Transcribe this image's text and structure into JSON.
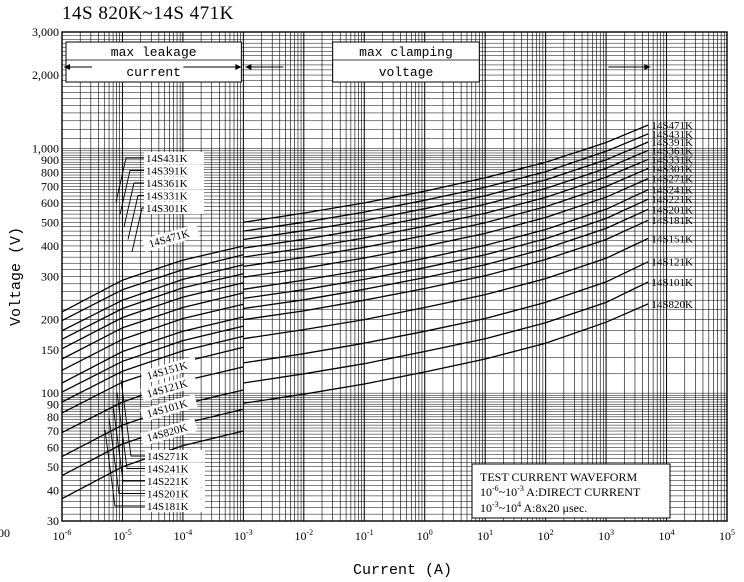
{
  "chart_data": {
    "type": "line",
    "title": "14S 820K~14S 471K",
    "xlabel": "Current (A)",
    "ylabel": "Voltage (V)",
    "x_scale": "log",
    "y_scale": "log",
    "xlim": [
      1e-06,
      100000
    ],
    "ylim": [
      30,
      3000
    ],
    "x_ticks": [
      "10-6",
      "10-5",
      "10-4",
      "10-3",
      "10-2",
      "10-1",
      "10^0",
      "10^1",
      "10^2",
      "10^3",
      "10^4",
      "10^5"
    ],
    "x_tick_labels": [
      {
        "base": "10",
        "exp": "-6"
      },
      {
        "base": "10",
        "exp": "-5"
      },
      {
        "base": "10",
        "exp": "-4"
      },
      {
        "base": "10",
        "exp": "-3"
      },
      {
        "base": "10",
        "exp": "-2"
      },
      {
        "base": "10",
        "exp": "-1"
      },
      {
        "base": "10",
        "exp": "0"
      },
      {
        "base": "10",
        "exp": "1"
      },
      {
        "base": "10",
        "exp": "2"
      },
      {
        "base": "10",
        "exp": "3"
      },
      {
        "base": "10",
        "exp": "4"
      },
      {
        "base": "10",
        "exp": "5"
      }
    ],
    "x_tick_values": [
      1e-06,
      1e-05,
      0.0001,
      0.001,
      0.01,
      0.1,
      1,
      10,
      100,
      1000,
      10000,
      100000
    ],
    "y_ticks": [
      {
        "label": "3,000",
        "value": 3000
      },
      {
        "label": "2,000",
        "value": 2000
      },
      {
        "label": "1,000",
        "value": 1000
      },
      {
        "label": "900",
        "value": 900
      },
      {
        "label": "800",
        "value": 800
      },
      {
        "label": "700",
        "value": 700
      },
      {
        "label": "600",
        "value": 600
      },
      {
        "label": "500",
        "value": 500
      },
      {
        "label": "400",
        "value": 400
      },
      {
        "label": "300",
        "value": 300
      },
      {
        "label": "200",
        "value": 200
      },
      {
        "label": "150",
        "value": 150
      },
      {
        "label": "100",
        "value": 100
      },
      {
        "label": "90",
        "value": 90
      },
      {
        "label": "80",
        "value": 80
      },
      {
        "label": "70",
        "value": 70
      },
      {
        "label": "60",
        "value": 60
      },
      {
        "label": "50",
        "value": 50
      },
      {
        "label": "40",
        "value": 40
      },
      {
        "label": "30",
        "value": 30
      }
    ],
    "left_edge_label": "00",
    "grid": true,
    "regions": [
      {
        "label_lines": [
          "max leakage",
          "current"
        ],
        "x_start": 1e-06,
        "x_end": 0.001
      },
      {
        "label_lines": [
          "max clamping",
          "voltage"
        ],
        "x_start": 0.001,
        "x_end": 5000
      }
    ],
    "leakage_series": [
      {
        "name": "14S471K",
        "x": [
          1e-06,
          1e-05,
          0.0001,
          0.001
        ],
        "y": [
          215,
          290,
          350,
          400
        ]
      },
      {
        "name": "14S431K",
        "x": [
          1e-06,
          1e-05,
          0.0001,
          0.001
        ],
        "y": [
          198,
          265,
          320,
          368
        ]
      },
      {
        "name": "14S391K",
        "x": [
          1e-06,
          1e-05,
          0.0001,
          0.001
        ],
        "y": [
          180,
          240,
          292,
          335
        ]
      },
      {
        "name": "14S361K",
        "x": [
          1e-06,
          1e-05,
          0.0001,
          0.001
        ],
        "y": [
          166,
          222,
          270,
          308
        ]
      },
      {
        "name": "14S331K",
        "x": [
          1e-06,
          1e-05,
          0.0001,
          0.001
        ],
        "y": [
          152,
          204,
          247,
          283
        ]
      },
      {
        "name": "14S301K",
        "x": [
          1e-06,
          1e-05,
          0.0001,
          0.001
        ],
        "y": [
          138,
          185,
          224,
          257
        ]
      },
      {
        "name": "14S271K",
        "x": [
          1e-06,
          1e-05,
          0.0001,
          0.001
        ],
        "y": [
          124,
          166,
          202,
          231
        ]
      },
      {
        "name": "14S241K",
        "x": [
          1e-06,
          1e-05,
          0.0001,
          0.001
        ],
        "y": [
          110,
          148,
          179,
          205
        ]
      },
      {
        "name": "14S221K",
        "x": [
          1e-06,
          1e-05,
          0.0001,
          0.001
        ],
        "y": [
          101,
          135,
          164,
          188
        ]
      },
      {
        "name": "14S201K",
        "x": [
          1e-06,
          1e-05,
          0.0001,
          0.001
        ],
        "y": [
          92,
          123,
          149,
          171
        ]
      },
      {
        "name": "14S181K",
        "x": [
          1e-06,
          1e-05,
          0.0001,
          0.001
        ],
        "y": [
          83,
          111,
          134,
          154
        ]
      },
      {
        "name": "14S151K",
        "x": [
          1e-06,
          1e-05,
          0.0001,
          0.001
        ],
        "y": [
          69,
          92,
          112,
          128
        ]
      },
      {
        "name": "14S121K",
        "x": [
          1e-06,
          1e-05,
          0.0001,
          0.001
        ],
        "y": [
          55,
          74,
          90,
          103
        ]
      },
      {
        "name": "14S101K",
        "x": [
          1e-06,
          1e-05,
          0.0001,
          0.001
        ],
        "y": [
          46,
          62,
          75,
          86
        ]
      },
      {
        "name": "14S820K",
        "x": [
          1e-06,
          1e-05,
          0.0001,
          0.001
        ],
        "y": [
          37,
          50,
          61,
          70
        ]
      }
    ],
    "clamping_series": [
      {
        "name": "14S471K",
        "x": [
          0.001,
          0.01,
          0.1,
          1,
          10,
          100,
          1000,
          5000
        ],
        "y": [
          500,
          545,
          600,
          670,
          760,
          880,
          1060,
          1250
        ]
      },
      {
        "name": "14S431K",
        "x": [
          0.001,
          0.01,
          0.1,
          1,
          10,
          100,
          1000,
          5000
        ],
        "y": [
          460,
          500,
          550,
          615,
          695,
          805,
          975,
          1150
        ]
      },
      {
        "name": "14S391K",
        "x": [
          0.001,
          0.01,
          0.1,
          1,
          10,
          100,
          1000,
          5000
        ],
        "y": [
          425,
          462,
          508,
          568,
          642,
          745,
          900,
          1065
        ]
      },
      {
        "name": "14S361K",
        "x": [
          0.001,
          0.01,
          0.1,
          1,
          10,
          100,
          1000,
          5000
        ],
        "y": [
          392,
          426,
          469,
          524,
          592,
          687,
          830,
          985
        ]
      },
      {
        "name": "14S331K",
        "x": [
          0.001,
          0.01,
          0.1,
          1,
          10,
          100,
          1000,
          5000
        ],
        "y": [
          360,
          392,
          431,
          482,
          544,
          632,
          764,
          905
        ]
      },
      {
        "name": "14S301K",
        "x": [
          0.001,
          0.01,
          0.1,
          1,
          10,
          100,
          1000,
          5000
        ],
        "y": [
          330,
          359,
          395,
          441,
          498,
          579,
          700,
          830
        ]
      },
      {
        "name": "14S271K",
        "x": [
          0.001,
          0.01,
          0.1,
          1,
          10,
          100,
          1000,
          5000
        ],
        "y": [
          298,
          324,
          357,
          399,
          450,
          523,
          633,
          755
        ]
      },
      {
        "name": "14S241K",
        "x": [
          0.001,
          0.01,
          0.1,
          1,
          10,
          100,
          1000,
          5000
        ],
        "y": [
          266,
          290,
          319,
          356,
          402,
          467,
          565,
          680
        ]
      },
      {
        "name": "14S221K",
        "x": [
          0.001,
          0.01,
          0.1,
          1,
          10,
          100,
          1000,
          5000
        ],
        "y": [
          244,
          265,
          292,
          326,
          368,
          428,
          518,
          622
        ]
      },
      {
        "name": "14S201K",
        "x": [
          0.001,
          0.01,
          0.1,
          1,
          10,
          100,
          1000,
          5000
        ],
        "y": [
          222,
          241,
          266,
          297,
          335,
          390,
          472,
          565
        ]
      },
      {
        "name": "14S181K",
        "x": [
          0.001,
          0.01,
          0.1,
          1,
          10,
          100,
          1000,
          5000
        ],
        "y": [
          200,
          217,
          240,
          268,
          302,
          352,
          425,
          510
        ]
      },
      {
        "name": "14S151K",
        "x": [
          0.001,
          0.01,
          0.1,
          1,
          10,
          100,
          1000,
          5000
        ],
        "y": [
          167,
          182,
          200,
          224,
          253,
          294,
          356,
          430
        ]
      },
      {
        "name": "14S121K",
        "x": [
          0.001,
          0.01,
          0.1,
          1,
          10,
          100,
          1000,
          5000
        ],
        "y": [
          133,
          145,
          160,
          179,
          202,
          235,
          285,
          345
        ]
      },
      {
        "name": "14S101K",
        "x": [
          0.001,
          0.01,
          0.1,
          1,
          10,
          100,
          1000,
          5000
        ],
        "y": [
          110,
          120,
          132,
          148,
          167,
          194,
          235,
          285
        ]
      },
      {
        "name": "14S820K",
        "x": [
          0.001,
          0.01,
          0.1,
          1,
          10,
          100,
          1000,
          5000
        ],
        "y": [
          91,
          99,
          109,
          122,
          138,
          160,
          195,
          232
        ]
      }
    ],
    "right_labels": [
      "14S471K",
      "14S431K",
      "14S391K",
      "14S361K",
      "14S331K",
      "14S301K",
      "14S271K",
      "14S241K",
      "14S221K",
      "14S201K",
      "14S181K",
      "14S151K",
      "14S121K",
      "14S101K",
      "14S820K"
    ],
    "top_left_labels": [
      "14S431K",
      "14S391K",
      "14S361K",
      "14S331K",
      "14S301K"
    ],
    "rotated_labels": [
      "14S471K",
      "14S151K",
      "14S121K",
      "14S101K",
      "14S820K"
    ],
    "bottom_left_labels": [
      "14S271K",
      "14S241K",
      "14S221K",
      "14S201K",
      "14S181K"
    ],
    "test_box": {
      "title": "TEST CURRENT WAVEFORM",
      "line1": {
        "base_a": "10",
        "exp_a": "-6",
        "tilde": "~",
        "base_b": "10",
        "exp_b": "-3",
        "text": "A:DIRECT CURRENT"
      },
      "line2": {
        "base_a": "10",
        "exp_a": "-3",
        "tilde": "~",
        "base_b": "10",
        "exp_b": "4",
        "text": "A:8x20 μsec."
      }
    }
  }
}
